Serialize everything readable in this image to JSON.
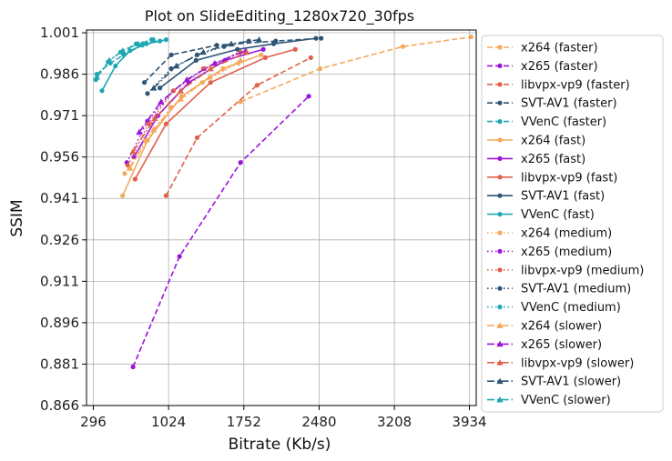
{
  "chart_data": {
    "type": "line",
    "title": "Plot on SlideEditing_1280x720_30fps",
    "xlabel": "Bitrate (Kb/s)",
    "ylabel": "SSIM",
    "xlim": [
      230,
      4000
    ],
    "ylim": [
      0.866,
      1.002
    ],
    "xticks": [
      "296",
      "1024",
      "1752",
      "2480",
      "3208",
      "3934"
    ],
    "yticks": [
      "0.866",
      "0.881",
      "0.896",
      "0.911",
      "0.926",
      "0.941",
      "0.956",
      "0.971",
      "0.986",
      "1.001"
    ],
    "grid": true,
    "legend_position": "outside-right",
    "colors": {
      "x264": "#f5a85a",
      "x265": "#9b14d9",
      "libvpx-vp9": "#e0604a",
      "SVT-AV1": "#2e5475",
      "VVenC": "#1fa7b3"
    },
    "series": [
      {
        "name": "x264 (faster)",
        "codec": "x264",
        "preset": "faster",
        "x": [
          1720,
          2490,
          3290,
          3950
        ],
        "y": [
          0.976,
          0.988,
          0.996,
          0.9995
        ]
      },
      {
        "name": "x265 (faster)",
        "codec": "x265",
        "preset": "faster",
        "x": [
          680,
          1130,
          1720,
          2380
        ],
        "y": [
          0.88,
          0.92,
          0.954,
          0.978
        ]
      },
      {
        "name": "libvpx-vp9 (faster)",
        "codec": "libvpx-vp9",
        "preset": "faster",
        "x": [
          1000,
          1300,
          1880,
          2400
        ],
        "y": [
          0.942,
          0.963,
          0.982,
          0.992
        ]
      },
      {
        "name": "SVT-AV1 (faster)",
        "codec": "SVT-AV1",
        "preset": "faster",
        "x": [
          790,
          1050,
          1490,
          2060,
          2500
        ],
        "y": [
          0.983,
          0.993,
          0.9965,
          0.998,
          0.999
        ]
      },
      {
        "name": "VVenC (faster)",
        "codec": "VVenC",
        "preset": "faster",
        "x": [
          330,
          460,
          590,
          770,
          1000
        ],
        "y": [
          0.986,
          0.99,
          0.993,
          0.9965,
          0.9985
        ]
      },
      {
        "name": "x264 (fast)",
        "codec": "x264",
        "preset": "fast",
        "x": [
          580,
          820,
          1150,
          1550,
          1920
        ],
        "y": [
          0.942,
          0.962,
          0.978,
          0.988,
          0.993
        ]
      },
      {
        "name": "x265 (fast)",
        "codec": "x265",
        "preset": "fast",
        "x": [
          690,
          920,
          1220,
          1570,
          1940
        ],
        "y": [
          0.956,
          0.971,
          0.983,
          0.991,
          0.995
        ]
      },
      {
        "name": "libvpx-vp9 (fast)",
        "codec": "libvpx-vp9",
        "preset": "fast",
        "x": [
          700,
          1000,
          1430,
          1960,
          2250
        ],
        "y": [
          0.948,
          0.968,
          0.983,
          0.992,
          0.995
        ]
      },
      {
        "name": "SVT-AV1 (fast)",
        "codec": "SVT-AV1",
        "preset": "fast",
        "x": [
          940,
          1290,
          1690,
          2040,
          2450
        ],
        "y": [
          0.981,
          0.991,
          0.995,
          0.997,
          0.999
        ]
      },
      {
        "name": "VVenC (fast)",
        "codec": "VVenC",
        "preset": "fast",
        "x": [
          380,
          510,
          650,
          810,
          940
        ],
        "y": [
          0.98,
          0.989,
          0.9945,
          0.997,
          0.998
        ]
      },
      {
        "name": "x264 (medium)",
        "codec": "x264",
        "preset": "medium",
        "x": [
          600,
          800,
          1050,
          1350,
          1700
        ],
        "y": [
          0.95,
          0.962,
          0.974,
          0.983,
          0.99
        ]
      },
      {
        "name": "x265 (medium)",
        "codec": "x265",
        "preset": "medium",
        "x": [
          620,
          820,
          1070,
          1370,
          1720
        ],
        "y": [
          0.954,
          0.969,
          0.98,
          0.988,
          0.994
        ]
      },
      {
        "name": "libvpx-vp9 (medium)",
        "codec": "libvpx-vp9",
        "preset": "medium",
        "x": [
          630,
          830,
          1070,
          1360,
          1720
        ],
        "y": [
          0.953,
          0.968,
          0.98,
          0.988,
          0.994
        ]
      },
      {
        "name": "SVT-AV1 (medium)",
        "codec": "SVT-AV1",
        "preset": "medium",
        "x": [
          820,
          1050,
          1300,
          1560,
          1800
        ],
        "y": [
          0.979,
          0.988,
          0.993,
          0.996,
          0.998
        ]
      },
      {
        "name": "VVenC (medium)",
        "codec": "VVenC",
        "preset": "medium",
        "x": [
          320,
          440,
          560,
          710,
          860
        ],
        "y": [
          0.984,
          0.9905,
          0.994,
          0.997,
          0.9985
        ]
      },
      {
        "name": "x264 (slower)",
        "codec": "x264",
        "preset": "slower",
        "x": [
          650,
          880,
          1140,
          1420,
          1720
        ],
        "y": [
          0.952,
          0.966,
          0.977,
          0.985,
          0.991
        ]
      },
      {
        "name": "x265 (slower)",
        "codec": "x265",
        "preset": "slower",
        "x": [
          740,
          950,
          1200,
          1470,
          1770
        ],
        "y": [
          0.965,
          0.976,
          0.984,
          0.99,
          0.9945
        ]
      },
      {
        "name": "libvpx-vp9 (slower)",
        "codec": "libvpx-vp9",
        "preset": "slower",
        "x": [
          680,
          890,
          1140,
          1430,
          1780
        ],
        "y": [
          0.958,
          0.97,
          0.98,
          0.988,
          0.994
        ]
      },
      {
        "name": "SVT-AV1 (slower)",
        "codec": "SVT-AV1",
        "preset": "slower",
        "x": [
          880,
          1100,
          1360,
          1630,
          1900
        ],
        "y": [
          0.981,
          0.989,
          0.994,
          0.997,
          0.9985
        ]
      },
      {
        "name": "VVenC (slower)",
        "codec": "VVenC",
        "preset": "slower",
        "x": [
          330,
          450,
          580,
          730,
          880
        ],
        "y": [
          0.985,
          0.991,
          0.9945,
          0.997,
          0.9985
        ]
      }
    ]
  }
}
